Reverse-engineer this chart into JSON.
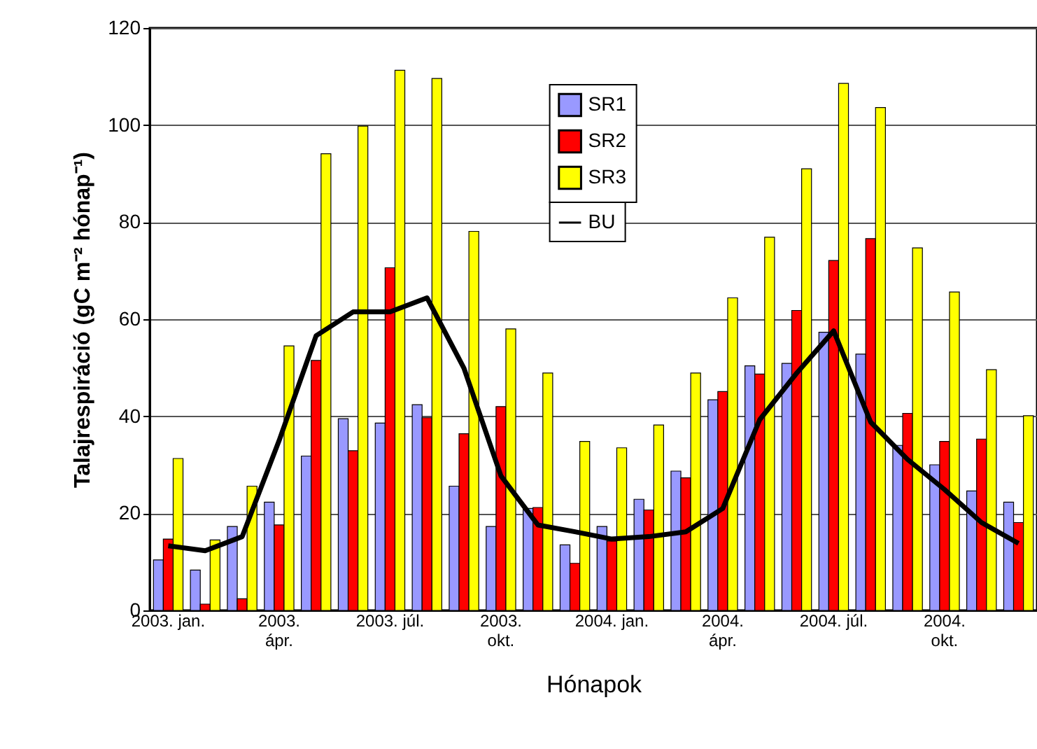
{
  "chart_data": {
    "type": "bar",
    "xlabel": "Hónapok",
    "ylabel": "Talajrespiráció (gC m⁻² hónap⁻¹)",
    "categories": [
      "2003. jan.",
      null,
      null,
      "2003.\nápr.",
      null,
      null,
      "2003. júl.",
      null,
      null,
      "2003.\nokt.",
      null,
      null,
      "2004. jan.",
      null,
      null,
      "2004.\nápr.",
      null,
      null,
      "2004. júl.",
      null,
      null,
      "2004.\nokt.",
      null,
      null
    ],
    "series": [
      {
        "name": "SR1",
        "color": "#9999ff",
        "values": [
          10.4,
          8.3,
          17.3,
          22.3,
          31.8,
          39.5,
          38.6,
          42.4,
          25.6,
          17.3,
          21,
          13.5,
          17.3,
          22.9,
          28.7,
          43.4,
          50.4,
          50.9,
          57.3,
          52.8,
          34,
          30,
          24.6,
          22.3
        ]
      },
      {
        "name": "SR2",
        "color": "#ff0000",
        "values": [
          14.7,
          1.3,
          2.4,
          17.6,
          51.5,
          32.9,
          70.6,
          39.7,
          36.4,
          42,
          21.2,
          9.7,
          14.3,
          20.7,
          27.3,
          45.1,
          48.7,
          61.8,
          72.1,
          76.6,
          40.6,
          34.8,
          35.3,
          18.1
        ]
      },
      {
        "name": "SR3",
        "color": "#ffff00",
        "values": [
          31.3,
          14.5,
          25.6,
          54.5,
          94.1,
          99.8,
          111.3,
          109.6,
          78.1,
          58,
          48.9,
          34.8,
          33.5,
          38.2,
          48.9,
          64.4,
          76.9,
          91,
          108.6,
          103.6,
          74.7,
          65.6,
          49.6,
          40.1
        ]
      },
      {
        "name": "BU",
        "type": "line",
        "color": "#000000",
        "values": [
          13.3,
          12.3,
          15.2,
          35,
          56.6,
          61.5,
          61.5,
          64.4,
          49.9,
          27.7,
          17.6,
          16.2,
          14.7,
          15.2,
          16.2,
          21,
          39.3,
          48.9,
          57.6,
          38.8,
          31.1,
          24.9,
          18.1,
          13.8
        ]
      }
    ],
    "ylim": [
      0,
      120
    ],
    "yticks": [
      0,
      20,
      40,
      60,
      80,
      100,
      120
    ],
    "grid": "y",
    "legend": "top",
    "marker": "none",
    "line_style": "solid"
  }
}
